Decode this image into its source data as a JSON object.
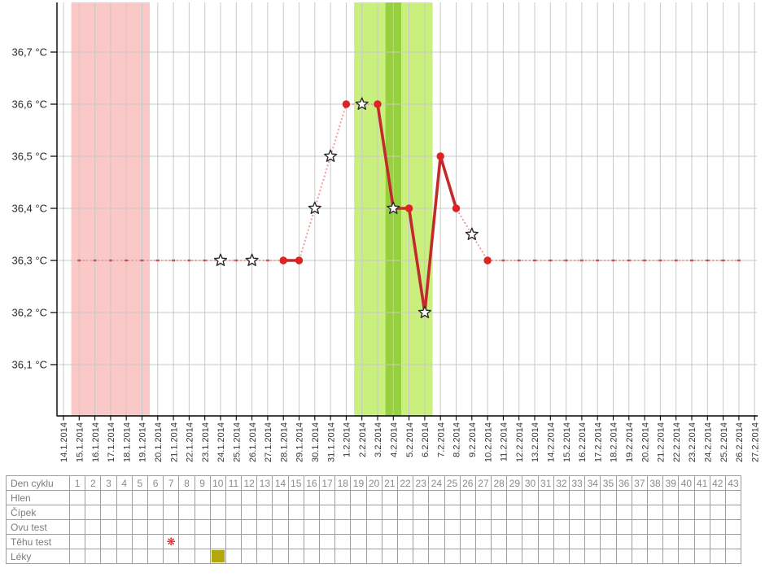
{
  "chart_data": {
    "type": "line",
    "title": "",
    "xlabel": "",
    "ylabel": "",
    "ylim": [
      36.0,
      36.8
    ],
    "grid": true,
    "y_axis": {
      "ticks": [
        {
          "value": 36.7,
          "label": "36,7 °C"
        },
        {
          "value": 36.6,
          "label": "36,6 °C"
        },
        {
          "value": 36.5,
          "label": "36,5 °C"
        },
        {
          "value": 36.4,
          "label": "36,4 °C"
        },
        {
          "value": 36.3,
          "label": "36,3 °C"
        },
        {
          "value": 36.2,
          "label": "36,2 °C"
        },
        {
          "value": 36.1,
          "label": "36,1 °C"
        }
      ]
    },
    "x_axis": {
      "dates": [
        "14.1.2014",
        "15.1.2014",
        "16.1.2014",
        "17.1.2014",
        "18.1.2014",
        "19.1.2014",
        "20.1.2014",
        "21.1.2014",
        "22.1.2014",
        "23.1.2014",
        "24.1.2014",
        "25.1.2014",
        "26.1.2014",
        "27.1.2014",
        "28.1.2014",
        "29.1.2014",
        "30.1.2014",
        "31.1.2014",
        "1.2.2014",
        "2.2.2014",
        "3.2.2014",
        "4.2.2014",
        "5.2.2014",
        "6.2.2014",
        "7.2.2014",
        "8.2.2014",
        "9.2.2014",
        "10.2.2014",
        "11.2.2014",
        "12.2.2014",
        "13.2.2014",
        "14.2.2014",
        "15.2.2014",
        "16.2.2014",
        "17.2.2014",
        "18.2.2014",
        "19.2.2014",
        "20.2.2014",
        "21.2.2014",
        "22.2.2014",
        "23.2.2014",
        "24.2.2014",
        "25.2.2014",
        "26.2.2014",
        "27.2.2014"
      ]
    },
    "series": [
      {
        "name": "basal-temperature",
        "points": [
          {
            "day": 11,
            "date": "24.1.2014",
            "temp": 36.3,
            "marker": "star"
          },
          {
            "day": 13,
            "date": "26.1.2014",
            "temp": 36.3,
            "marker": "star"
          },
          {
            "day": 15,
            "date": "28.1.2014",
            "temp": 36.3,
            "marker": "dot"
          },
          {
            "day": 16,
            "date": "29.1.2014",
            "temp": 36.3,
            "marker": "dot"
          },
          {
            "day": 17,
            "date": "30.1.2014",
            "temp": 36.4,
            "marker": "star"
          },
          {
            "day": 18,
            "date": "31.1.2014",
            "temp": 36.5,
            "marker": "star"
          },
          {
            "day": 19,
            "date": "1.2.2014",
            "temp": 36.6,
            "marker": "dot"
          },
          {
            "day": 20,
            "date": "2.2.2014",
            "temp": 36.6,
            "marker": "star"
          },
          {
            "day": 21,
            "date": "3.2.2014",
            "temp": 36.6,
            "marker": "dot"
          },
          {
            "day": 22,
            "date": "4.2.2014",
            "temp": 36.4,
            "marker": "star"
          },
          {
            "day": 23,
            "date": "5.2.2014",
            "temp": 36.4,
            "marker": "dot"
          },
          {
            "day": 24,
            "date": "6.2.2014",
            "temp": 36.2,
            "marker": "star"
          },
          {
            "day": 25,
            "date": "7.2.2014",
            "temp": 36.5,
            "marker": "dot"
          },
          {
            "day": 26,
            "date": "8.2.2014",
            "temp": 36.4,
            "marker": "dot"
          },
          {
            "day": 27,
            "date": "9.2.2014",
            "temp": 36.35,
            "marker": "star"
          },
          {
            "day": 28,
            "date": "10.2.2014",
            "temp": 36.3,
            "marker": "dot"
          }
        ],
        "solid_segment_ranges": [
          [
            15,
            16
          ],
          [
            21,
            26
          ]
        ],
        "interpolated_baseline": {
          "temp": 36.3,
          "from_day": 2,
          "to_day": 44
        }
      }
    ],
    "bands": [
      {
        "name": "menstruation",
        "from_day": 2,
        "to_day": 6,
        "color_key": "menstruation"
      },
      {
        "name": "fertile-window",
        "from_day": 20,
        "to_day": 24,
        "color_key": "fertile"
      },
      {
        "name": "ovulation-day",
        "from_day": 22,
        "to_day": 22,
        "color_key": "ovulation"
      }
    ],
    "colors": {
      "menstruation": "#fbc8c8",
      "fertile": "#c9ef7d",
      "ovulation": "#97d03f",
      "line_solid": "#c32b2b",
      "point": "#de2323",
      "interpolated": "#ee9e9e",
      "interpolated_mark": "#c85454",
      "grid": "#c9c9c9",
      "axis": "#000000",
      "star_fill": "#ffffff",
      "star_stroke": "#2b2b2b",
      "tick_text": "#2a2a2a",
      "table_border": "#9e9e9e",
      "flower": "#dd1111",
      "med_square": "#b2a70b"
    }
  },
  "table": {
    "day_numbers": [
      "1",
      "2",
      "3",
      "4",
      "5",
      "6",
      "7",
      "8",
      "9",
      "10",
      "11",
      "12",
      "13",
      "14",
      "15",
      "16",
      "17",
      "18",
      "19",
      "20",
      "21",
      "22",
      "23",
      "24",
      "25",
      "26",
      "27",
      "28",
      "29",
      "30",
      "31",
      "32",
      "33",
      "34",
      "35",
      "36",
      "37",
      "38",
      "39",
      "40",
      "41",
      "42",
      "43"
    ],
    "rows": [
      {
        "label": "Den cyklu",
        "type": "day-header",
        "marks": []
      },
      {
        "label": "Hlen",
        "type": "entry",
        "marks": []
      },
      {
        "label": "Čípek",
        "type": "entry",
        "marks": []
      },
      {
        "label": "Ovu test",
        "type": "entry",
        "marks": []
      },
      {
        "label": "Těhu test",
        "type": "entry",
        "marks": [
          {
            "day": 7,
            "icon": "flower-icon"
          }
        ]
      },
      {
        "label": "Léky",
        "type": "entry",
        "marks": [
          {
            "day": 10,
            "icon": "medication-square-icon"
          }
        ]
      }
    ]
  }
}
